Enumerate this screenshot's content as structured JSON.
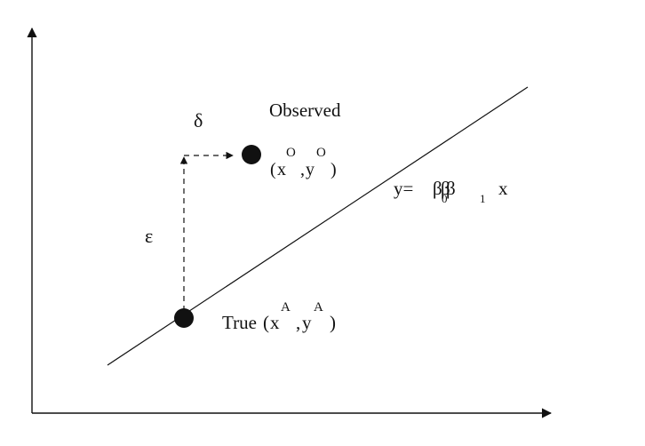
{
  "labels": {
    "delta": "δ",
    "observed": "Observed",
    "epsilon": "ε",
    "true_prefix": "True",
    "paren_open": "(",
    "paren_close": ")",
    "comma": ",",
    "x": "x",
    "y": "y",
    "obs_sup": "O",
    "true_sup": "A",
    "eq_y": "y=",
    "eq_beta": "β",
    "eq_beta_overlap": "β",
    "eq_beta_third": "β",
    "eq_sub0": "0",
    "eq_sub1": "1",
    "eq_x": "x"
  },
  "colors": {
    "ink": "#111111",
    "background": "#ffffff"
  }
}
